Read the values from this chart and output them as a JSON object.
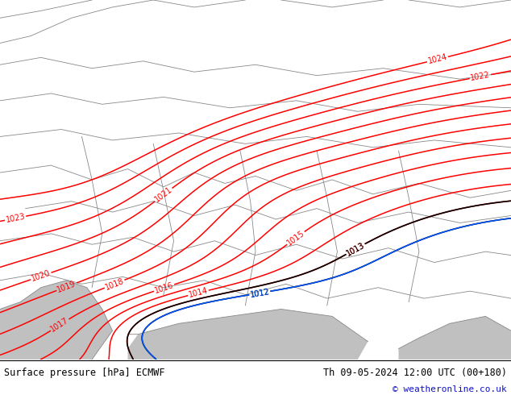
{
  "title_left": "Surface pressure [hPa] ECMWF",
  "title_right": "Th 09-05-2024 12:00 UTC (00+180)",
  "copyright": "© weatheronline.co.uk",
  "bg_color": "#90d870",
  "sea_color": "#c0c0c0",
  "contour_color_red": "#ff0000",
  "contour_color_black": "#000000",
  "contour_color_blue": "#0055ff",
  "border_color": "#888888",
  "bottom_bar_color": "#ffffff",
  "figsize": [
    6.34,
    4.9
  ],
  "dpi": 100
}
